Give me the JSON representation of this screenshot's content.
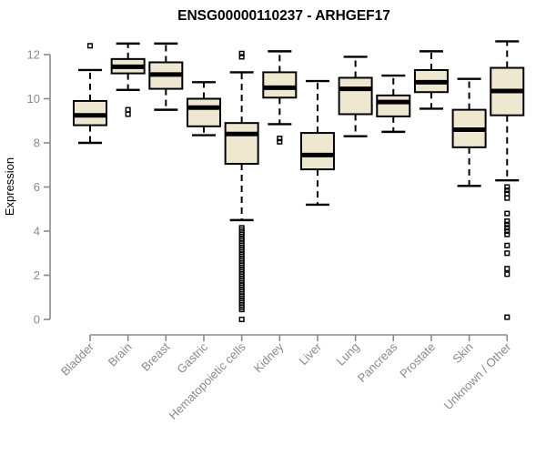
{
  "page": {
    "background": "#ffffff"
  },
  "chart_data": {
    "type": "boxplot",
    "title": "ENSG00000110237 - ARHGEF17",
    "ylabel": "Expression",
    "xlabel": "",
    "ylim": [
      0,
      12
    ],
    "yticks": [
      0,
      2,
      4,
      6,
      8,
      10,
      12
    ],
    "grid": false,
    "legend": "none",
    "colors": {
      "box_fill": "#EFE8D1",
      "box_stroke": "#000000",
      "median": "#000000",
      "whisker": "#000000",
      "axis": "#8A8A8A",
      "tick_label": "#8A8A8A",
      "title": "#000000"
    },
    "series": [
      {
        "name": "Bladder",
        "whisker_low": 8.0,
        "q1": 8.8,
        "median": 9.25,
        "q3": 9.9,
        "whisker_high": 11.3,
        "outliers": [
          12.4
        ]
      },
      {
        "name": "Brain",
        "whisker_low": 10.4,
        "q1": 11.15,
        "median": 11.45,
        "q3": 11.8,
        "whisker_high": 12.5,
        "outliers": [
          9.5,
          9.3
        ]
      },
      {
        "name": "Breast",
        "whisker_low": 9.5,
        "q1": 10.45,
        "median": 11.1,
        "q3": 11.65,
        "whisker_high": 12.5,
        "outliers": []
      },
      {
        "name": "Gastric",
        "whisker_low": 8.35,
        "q1": 8.75,
        "median": 9.6,
        "q3": 10.0,
        "whisker_high": 10.75,
        "outliers": []
      },
      {
        "name": "Hematopoietic cells",
        "whisker_low": 4.5,
        "q1": 7.05,
        "median": 8.4,
        "q3": 8.9,
        "whisker_high": 11.2,
        "outliers": [
          12.05,
          11.9,
          4.15,
          4.05,
          3.95,
          3.85,
          3.75,
          3.65,
          3.55,
          3.45,
          3.35,
          3.25,
          3.15,
          3.05,
          2.95,
          2.85,
          2.75,
          2.65,
          2.55,
          2.45,
          2.35,
          2.25,
          2.15,
          2.05,
          1.95,
          1.85,
          1.75,
          1.65,
          1.55,
          1.45,
          1.35,
          1.25,
          1.15,
          1.05,
          0.95,
          0.85,
          0.75,
          0.65,
          0.55,
          0.45,
          0.0
        ]
      },
      {
        "name": "Kidney",
        "whisker_low": 8.85,
        "q1": 10.05,
        "median": 10.5,
        "q3": 11.2,
        "whisker_high": 12.15,
        "outliers": [
          8.2,
          8.05
        ]
      },
      {
        "name": "Liver",
        "whisker_low": 5.2,
        "q1": 6.8,
        "median": 7.45,
        "q3": 8.45,
        "whisker_high": 10.8,
        "outliers": []
      },
      {
        "name": "Lung",
        "whisker_low": 8.3,
        "q1": 9.3,
        "median": 10.45,
        "q3": 10.95,
        "whisker_high": 11.9,
        "outliers": []
      },
      {
        "name": "Pancreas",
        "whisker_low": 8.5,
        "q1": 9.2,
        "median": 9.85,
        "q3": 10.15,
        "whisker_high": 11.05,
        "outliers": []
      },
      {
        "name": "Prostate",
        "whisker_low": 9.55,
        "q1": 10.3,
        "median": 10.75,
        "q3": 11.3,
        "whisker_high": 12.15,
        "outliers": []
      },
      {
        "name": "Skin",
        "whisker_low": 6.05,
        "q1": 7.8,
        "median": 8.6,
        "q3": 9.5,
        "whisker_high": 10.9,
        "outliers": []
      },
      {
        "name": "Unknown / Other",
        "whisker_low": 6.3,
        "q1": 9.25,
        "median": 10.35,
        "q3": 11.4,
        "whisker_high": 12.6,
        "outliers": [
          6.0,
          5.85,
          5.7,
          5.5,
          4.8,
          4.45,
          4.3,
          4.15,
          4.0,
          3.85,
          3.35,
          3.0,
          2.3,
          2.05,
          0.1
        ]
      }
    ]
  }
}
